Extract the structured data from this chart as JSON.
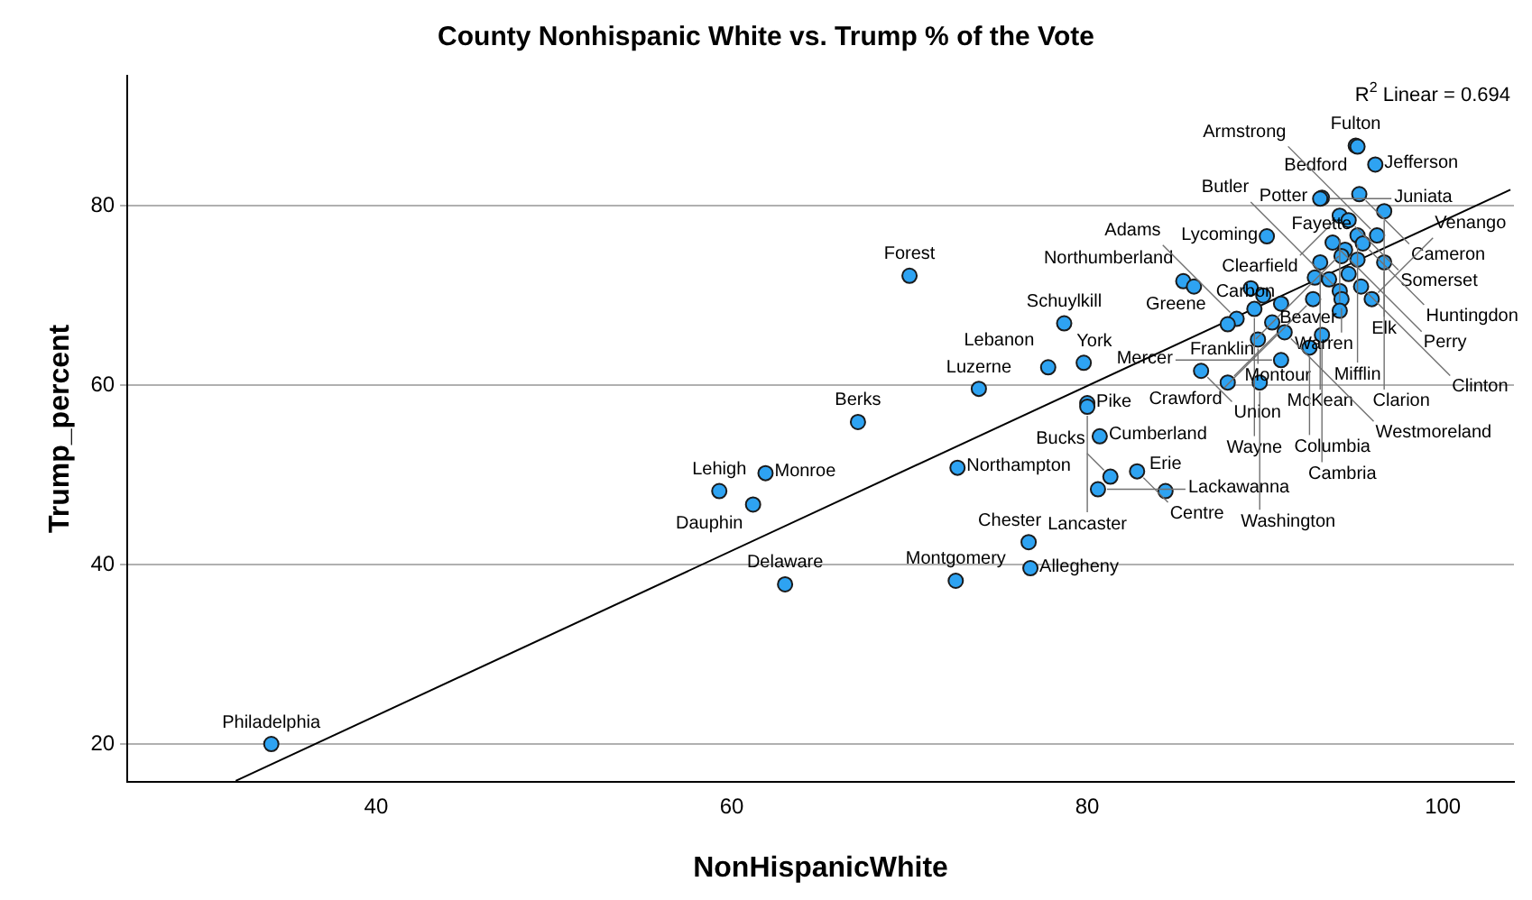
{
  "chart_data": {
    "type": "scatter",
    "title": "County Nonhispanic White vs. Trump % of the Vote",
    "xlabel": "NonHispanicWhite",
    "ylabel": "Trump_percent",
    "xlim": [
      26,
      104
    ],
    "ylim": [
      15.8,
      94.5
    ],
    "xticks": [
      40,
      60,
      80,
      100
    ],
    "yticks": [
      20,
      40,
      60,
      80
    ],
    "grid": "y",
    "series": [
      {
        "marker": "circle",
        "color": "#2ea3f2",
        "x": [
          34.1,
          63.0,
          59.3,
          61.9,
          61.2,
          67.1,
          70.0,
          73.9,
          72.7,
          72.6,
          77.8,
          79.8,
          78.7,
          80.0,
          80.0,
          80.7,
          76.7,
          76.8,
          81.3,
          80.6,
          82.8,
          84.4,
          95.1,
          95.2,
          96.2,
          93.2,
          93.1,
          95.3,
          96.7,
          94.2,
          94.7,
          90.1,
          95.2,
          96.3,
          95.5,
          93.8,
          94.5,
          94.3,
          93.1,
          95.2,
          96.7,
          92.8,
          93.6,
          94.7,
          85.4,
          86.0,
          89.2,
          89.9,
          90.9,
          89.4,
          92.7,
          94.2,
          94.3,
          95.4,
          96.0,
          94.2,
          88.4,
          87.9,
          90.4,
          91.1,
          93.2,
          89.6,
          92.5,
          90.9,
          86.4,
          87.9,
          89.7
        ],
        "values": [
          20.0,
          37.8,
          48.2,
          50.2,
          46.7,
          55.9,
          72.2,
          59.6,
          50.8,
          38.2,
          62.0,
          62.5,
          66.9,
          58.0,
          57.6,
          54.3,
          42.5,
          39.6,
          49.8,
          48.4,
          50.4,
          48.2,
          86.7,
          86.6,
          84.6,
          80.9,
          80.8,
          81.3,
          79.4,
          78.9,
          78.4,
          76.6,
          76.7,
          76.7,
          75.8,
          75.9,
          75.1,
          74.4,
          73.7,
          74.0,
          73.7,
          72.0,
          71.8,
          72.4,
          71.6,
          71.0,
          70.8,
          70.0,
          69.1,
          68.5,
          69.6,
          70.5,
          69.6,
          71.0,
          69.6,
          68.3,
          67.4,
          66.8,
          67.0,
          65.9,
          65.6,
          65.1,
          64.2,
          62.8,
          61.6,
          60.3,
          60.3
        ]
      },
      {
        "type": "line",
        "color": "#000000",
        "x": [
          32.1,
          103.8
        ],
        "values": [
          15.9,
          81.8
        ]
      }
    ],
    "annotations": [
      "R$^{2}$ Linear = 0.694",
      {
        "text": "Philadelphia",
        "x": 34.1,
        "y": 20.0
      },
      {
        "text": "Delaware",
        "x": 63.0,
        "y": 37.8
      },
      {
        "text": "Lehigh",
        "x": 59.3,
        "y": 48.2
      },
      {
        "text": "Monroe",
        "x": 61.9,
        "y": 50.2
      },
      {
        "text": "Dauphin",
        "x": 61.2,
        "y": 46.7
      },
      {
        "text": "Berks",
        "x": 67.1,
        "y": 55.9
      },
      {
        "text": "Forest",
        "x": 70.0,
        "y": 72.2
      },
      {
        "text": "Luzerne",
        "x": 73.9,
        "y": 59.6
      },
      {
        "text": "Northampton",
        "x": 72.7,
        "y": 50.8
      },
      {
        "text": "Montgomery",
        "x": 72.6,
        "y": 38.2
      },
      {
        "text": "Lebanon",
        "x": 77.8,
        "y": 62.0
      },
      {
        "text": "York",
        "x": 79.8,
        "y": 62.5
      },
      {
        "text": "Schuylkill",
        "x": 78.7,
        "y": 66.9
      },
      {
        "text": "Pike",
        "x": 80.0,
        "y": 58.0
      },
      {
        "text": "Lancaster",
        "x": 80.0,
        "y": 57.6
      },
      {
        "text": "Cumberland",
        "x": 80.7,
        "y": 54.3
      },
      {
        "text": "Chester",
        "x": 76.7,
        "y": 42.5
      },
      {
        "text": "Allegheny",
        "x": 76.8,
        "y": 39.6
      },
      {
        "text": "Bucks",
        "x": 81.3,
        "y": 49.8
      },
      {
        "text": "Lackawanna",
        "x": 80.6,
        "y": 48.4
      },
      {
        "text": "Centre",
        "x": 82.8,
        "y": 50.4
      },
      {
        "text": "Erie",
        "x": 84.4,
        "y": 48.2
      },
      {
        "text": "Fulton",
        "x": 95.1,
        "y": 86.7
      },
      {
        "text": "Bedford",
        "x": 95.2,
        "y": 86.6
      },
      {
        "text": "Jefferson",
        "x": 96.2,
        "y": 84.6
      },
      {
        "text": "Potter",
        "x": 93.2,
        "y": 80.9
      },
      {
        "text": "Juniata",
        "x": 93.1,
        "y": 80.8
      },
      {
        "text": "Cameron",
        "x": 95.3,
        "y": 81.3
      },
      {
        "text": "Elk",
        "x": 96.7,
        "y": 79.4
      },
      {
        "text": "Clearfield",
        "x": 94.2,
        "y": 78.9
      },
      {
        "text": "Somerset",
        "x": 94.7,
        "y": 78.4
      },
      {
        "text": "Lycoming",
        "x": 90.1,
        "y": 76.6
      },
      {
        "text": "Mifflin",
        "x": 95.2,
        "y": 76.7
      },
      {
        "text": "Armstrong",
        "x": 96.3,
        "y": 76.7
      },
      {
        "text": "Huntingdon",
        "x": 95.5,
        "y": 75.8
      },
      {
        "text": "Perry",
        "x": 93.8,
        "y": 75.9
      },
      {
        "text": "Franklin",
        "x": 94.5,
        "y": 75.1
      },
      {
        "text": "McKean",
        "x": 93.1,
        "y": 73.7
      },
      {
        "text": "Clarion",
        "x": 96.7,
        "y": 73.7
      },
      {
        "text": "Northumberland",
        "x": 85.4,
        "y": 71.6
      },
      {
        "text": "Greene",
        "x": 86.0,
        "y": 71.0
      },
      {
        "text": "Wayne",
        "x": 89.4,
        "y": 68.5
      },
      {
        "text": "Crawford",
        "x": 92.7,
        "y": 69.6
      },
      {
        "text": "Butler",
        "x": 94.2,
        "y": 70.5
      },
      {
        "text": "Warren",
        "x": 94.3,
        "y": 69.6
      },
      {
        "text": "Clinton",
        "x": 95.4,
        "y": 71.0
      },
      {
        "text": "Venango",
        "x": 96.0,
        "y": 69.6
      },
      {
        "text": "Fayette",
        "x": 94.2,
        "y": 68.3
      },
      {
        "text": "Adams",
        "x": 88.4,
        "y": 67.4
      },
      {
        "text": "Carbon",
        "x": 87.9,
        "y": 66.8
      },
      {
        "text": "Westmoreland",
        "x": 91.1,
        "y": 65.9
      },
      {
        "text": "Cambria",
        "x": 93.2,
        "y": 65.6
      },
      {
        "text": "Montour",
        "x": 89.6,
        "y": 65.1
      },
      {
        "text": "Columbia",
        "x": 92.5,
        "y": 64.2
      },
      {
        "text": "Mercer",
        "x": 90.9,
        "y": 62.8
      },
      {
        "text": "Union",
        "x": 86.4,
        "y": 61.6
      },
      {
        "text": "Beaver",
        "x": 87.9,
        "y": 60.3
      },
      {
        "text": "Washington",
        "x": 89.7,
        "y": 60.3
      }
    ]
  }
}
